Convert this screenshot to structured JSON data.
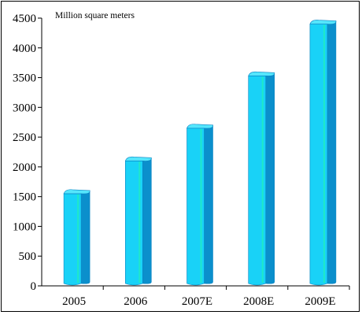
{
  "chart_data": {
    "type": "bar",
    "unit_label": "Million square meters",
    "categories": [
      "2005",
      "2006",
      "2007E",
      "2008E",
      "2009E"
    ],
    "values": [
      1550,
      2100,
      2650,
      3530,
      4400
    ],
    "ylim": [
      0,
      4500
    ],
    "yticks": [
      "0",
      "500",
      "1000",
      "1500",
      "2000",
      "2500",
      "3000",
      "3500",
      "4000",
      "4500"
    ],
    "grid": false,
    "legend": "none",
    "colors": {
      "bar_front": "#19d2f7",
      "bar_side": "#0b8fcc",
      "bar_top": "#55e6fc",
      "bar_highlight": "#1fe8c8",
      "bar_edge": "#0a84c3"
    }
  }
}
